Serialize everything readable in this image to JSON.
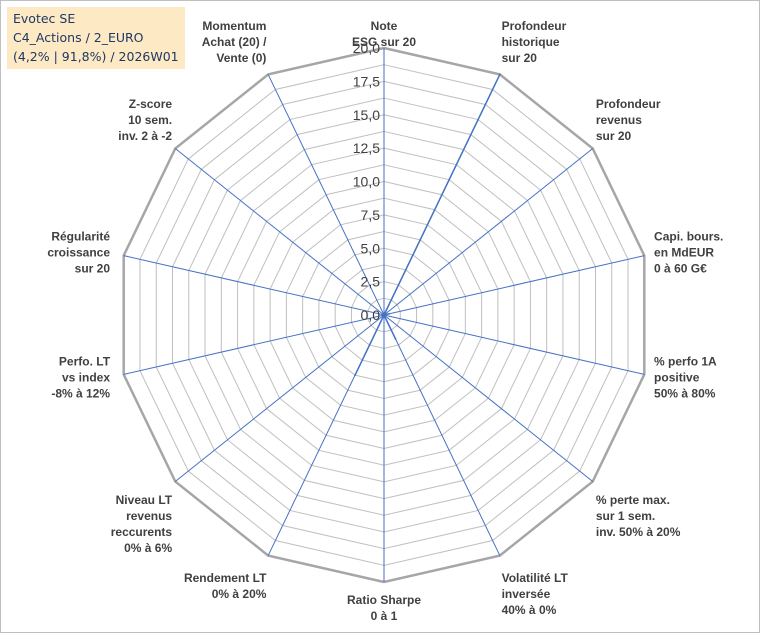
{
  "title": {
    "line1": "Evotec SE",
    "line2": "C4_Actions / 2_EURO",
    "line3": "(4,2% | 91,8%) / 2026W01"
  },
  "chart_data": {
    "type": "radar",
    "rmin": 0,
    "rmax": 20,
    "ticks": [
      "0,0",
      "2,5",
      "5,0",
      "7,5",
      "10,0",
      "12,5",
      "15,0",
      "17,5",
      "20,0"
    ],
    "tick_values": [
      0,
      2.5,
      5,
      7.5,
      10,
      12.5,
      15,
      17.5,
      20
    ],
    "axes": [
      {
        "label": [
          "Note",
          "ESG sur 20"
        ],
        "value": 0.0
      },
      {
        "label": [
          "Profondeur",
          "historique",
          "sur 20"
        ],
        "value": 20.0
      },
      {
        "label": [
          "Profondeur",
          "revenus",
          "sur 20"
        ],
        "value": 0.0
      },
      {
        "label": [
          "Capi. bours.",
          "en MdEUR",
          "0 à 60 G€"
        ],
        "value": 0.4
      },
      {
        "label": [
          "% perfo 1A",
          "positive",
          "50% à 80%"
        ],
        "value": 0.0
      },
      {
        "label": [
          "% perte max.",
          "sur 1 sem.",
          "inv. 50% à 20%"
        ],
        "value": 0.0
      },
      {
        "label": [
          "Volatilité LT",
          "inversée",
          "40% à 0%"
        ],
        "value": 2.0
      },
      {
        "label": [
          "Ratio Sharpe",
          "0 à 1"
        ],
        "value": 0.0
      },
      {
        "label": [
          "Rendement LT",
          "0% à 20%"
        ],
        "value": 5.0
      },
      {
        "label": [
          "Niveau LT",
          "revenus",
          "reccurents",
          "0% à 6%"
        ],
        "value": 0.0
      },
      {
        "label": [
          "Perfo. LT",
          "vs index",
          "-8% à 12%"
        ],
        "value": 0.0
      },
      {
        "label": [
          "Régularité",
          "croissance",
          "sur 20"
        ],
        "value": 0.0
      },
      {
        "label": [
          "Z-score",
          "10 sem.",
          "inv. 2 à -2"
        ],
        "value": 0.0
      },
      {
        "label": [
          "Momentum",
          "Achat (20) /",
          "Vente (0)"
        ],
        "value": 0.0
      }
    ],
    "grid_color": "#bfbfbf",
    "outer_ring_color": "#a6a6a6",
    "spoke_color": "#4472c4",
    "series_color": "#4472c4",
    "label_color": "#404040"
  }
}
